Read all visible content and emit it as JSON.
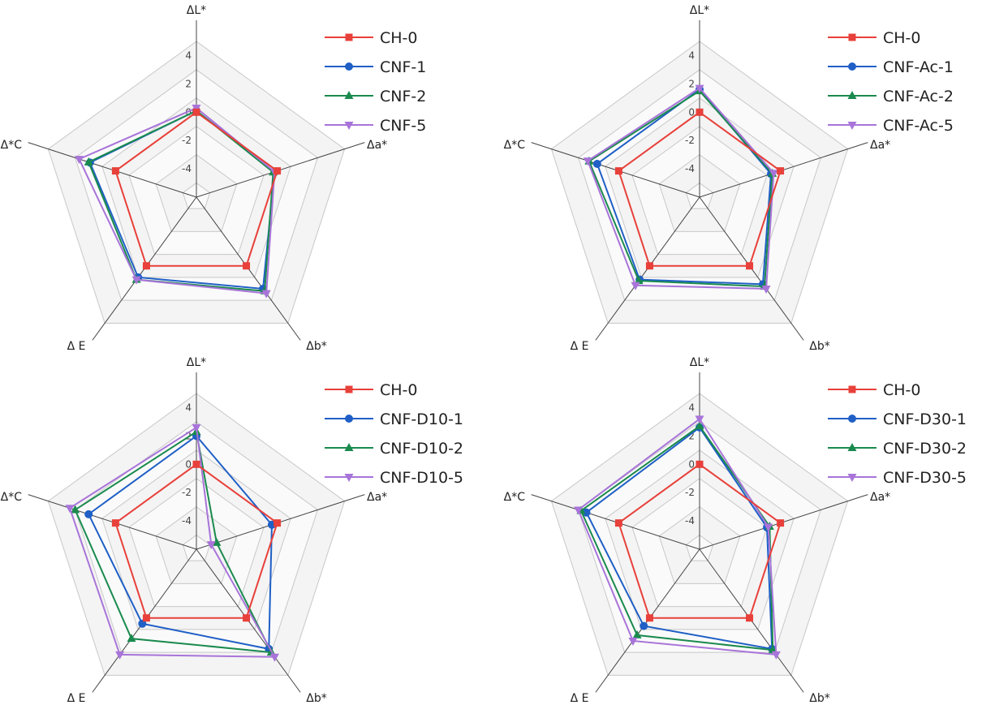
{
  "chart_data": [
    {
      "type": "radar",
      "axes": [
        "ΔL*",
        "Δa*",
        "Δb*",
        "Δ E",
        "Δ*C"
      ],
      "ticks": [
        4,
        2,
        0,
        -2,
        -4
      ],
      "tick_labels": [
        "4",
        "2",
        "0",
        "-2",
        "-4"
      ],
      "rlim": [
        -6,
        5
      ],
      "grid": true,
      "legend_position": "top-right",
      "series": [
        {
          "name": "CH-0",
          "color": "#e8403a",
          "marker": "square",
          "values": [
            0,
            0,
            0,
            0,
            0
          ]
        },
        {
          "name": "CNF-1",
          "color": "#1f5fc6",
          "marker": "circle",
          "values": [
            0.1,
            -0.2,
            2.0,
            1.0,
            1.9
          ]
        },
        {
          "name": "CNF-2",
          "color": "#1a8a4e",
          "marker": "triangle",
          "values": [
            0.1,
            -0.3,
            2.2,
            1.2,
            2.0
          ]
        },
        {
          "name": "CNF-5",
          "color": "#a874d9",
          "marker": "triangle-down",
          "values": [
            0.3,
            -0.2,
            2.4,
            1.2,
            2.7
          ]
        }
      ]
    },
    {
      "type": "radar",
      "axes": [
        "ΔL*",
        "Δa*",
        "Δb*",
        "Δ E",
        "Δ*C"
      ],
      "ticks": [
        4,
        2,
        0,
        -2,
        -4
      ],
      "tick_labels": [
        "4",
        "2",
        "0",
        "-2",
        "-4"
      ],
      "rlim": [
        -6,
        5
      ],
      "grid": true,
      "legend_position": "top-right",
      "series": [
        {
          "name": "CH-0",
          "color": "#e8403a",
          "marker": "square",
          "values": [
            0,
            0,
            0,
            0,
            0
          ]
        },
        {
          "name": "CNF-Ac-1",
          "color": "#1f5fc6",
          "marker": "circle",
          "values": [
            1.6,
            -0.7,
            1.6,
            1.2,
            1.6
          ]
        },
        {
          "name": "CNF-Ac-2",
          "color": "#1a8a4e",
          "marker": "triangle",
          "values": [
            1.5,
            -0.6,
            1.8,
            1.3,
            2.2
          ]
        },
        {
          "name": "CNF-Ac-5",
          "color": "#a874d9",
          "marker": "triangle-down",
          "values": [
            1.7,
            -0.5,
            2.0,
            1.7,
            2.3
          ]
        }
      ]
    },
    {
      "type": "radar",
      "axes": [
        "ΔL*",
        "Δa*",
        "Δb*",
        "Δ E",
        "Δ*C"
      ],
      "ticks": [
        4,
        2,
        0,
        -2,
        -4
      ],
      "tick_labels": [
        "4",
        "2",
        "0",
        "-2",
        "-4"
      ],
      "rlim": [
        -6,
        5
      ],
      "grid": true,
      "legend_position": "top-right",
      "series": [
        {
          "name": "CH-0",
          "color": "#e8403a",
          "marker": "square",
          "values": [
            0,
            0,
            0,
            0,
            0
          ]
        },
        {
          "name": "CNF-D10-1",
          "color": "#1f5fc6",
          "marker": "circle",
          "values": [
            2.0,
            -0.4,
            2.7,
            0.5,
            2.0
          ]
        },
        {
          "name": "CNF-D10-2",
          "color": "#1a8a4e",
          "marker": "triangle",
          "values": [
            2.3,
            -4.5,
            3.0,
            1.8,
            3.0
          ]
        },
        {
          "name": "CNF-D10-5",
          "color": "#a874d9",
          "marker": "triangle-down",
          "values": [
            2.6,
            -4.9,
            3.4,
            3.2,
            3.4
          ]
        }
      ]
    },
    {
      "type": "radar",
      "axes": [
        "ΔL*",
        "Δa*",
        "Δb*",
        "Δ E",
        "Δ*C"
      ],
      "ticks": [
        4,
        2,
        0,
        -2,
        -4
      ],
      "tick_labels": [
        "4",
        "2",
        "0",
        "-2",
        "-4"
      ],
      "rlim": [
        -6,
        5
      ],
      "grid": true,
      "legend_position": "top-right",
      "series": [
        {
          "name": "CH-0",
          "color": "#e8403a",
          "marker": "square",
          "values": [
            0,
            0,
            0,
            0,
            0
          ]
        },
        {
          "name": "CNF-D30-1",
          "color": "#1f5fc6",
          "marker": "circle",
          "values": [
            2.6,
            -1.0,
            2.7,
            0.7,
            2.4
          ]
        },
        {
          "name": "CNF-D30-2",
          "color": "#1a8a4e",
          "marker": "triangle",
          "values": [
            2.7,
            -0.8,
            2.8,
            1.5,
            2.8
          ]
        },
        {
          "name": "CNF-D30-5",
          "color": "#a874d9",
          "marker": "triangle-down",
          "values": [
            3.2,
            -0.9,
            3.2,
            2.0,
            3.0
          ]
        }
      ]
    }
  ]
}
